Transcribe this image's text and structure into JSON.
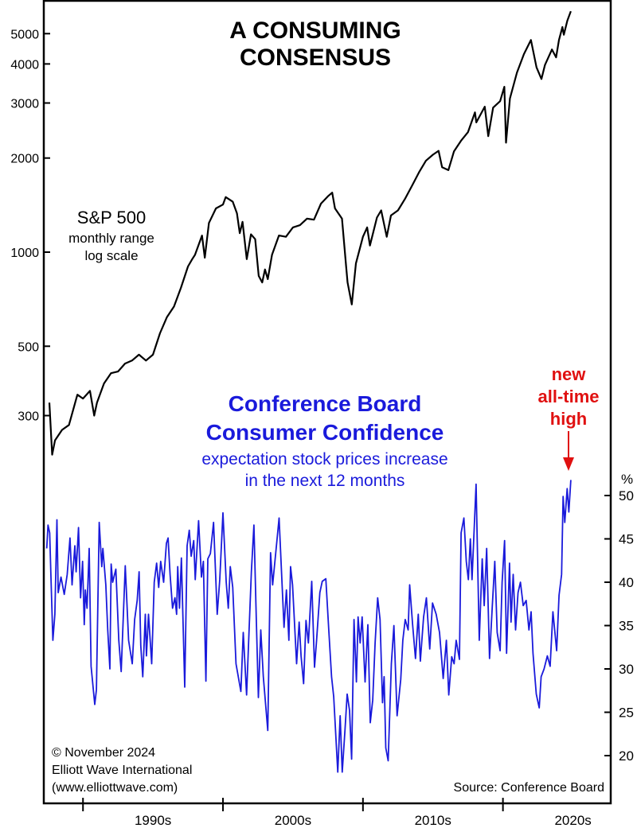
{
  "chart_data": [
    {
      "type": "line",
      "title": "A CONSUMING CONSENSUS",
      "series_label": "S&P 500",
      "series_sublabel": [
        "monthly range",
        "log scale"
      ],
      "y_scale": "log",
      "ylim": [
        200,
        6000
      ],
      "yticks": [
        300,
        500,
        1000,
        2000,
        3000,
        4000,
        5000
      ],
      "ytick_labels": [
        "300",
        "500",
        "1000",
        "2000",
        "3000",
        "4000",
        "5000"
      ],
      "axis_side": "left",
      "color": "#000000",
      "points": [
        [
          1987.6,
          330
        ],
        [
          1987.8,
          225
        ],
        [
          1988.0,
          250
        ],
        [
          1988.5,
          270
        ],
        [
          1989.0,
          280
        ],
        [
          1989.6,
          350
        ],
        [
          1990.0,
          340
        ],
        [
          1990.5,
          360
        ],
        [
          1990.8,
          300
        ],
        [
          1991.0,
          330
        ],
        [
          1991.5,
          380
        ],
        [
          1992.0,
          410
        ],
        [
          1992.5,
          415
        ],
        [
          1993.0,
          440
        ],
        [
          1993.5,
          450
        ],
        [
          1994.0,
          470
        ],
        [
          1994.5,
          450
        ],
        [
          1995.0,
          470
        ],
        [
          1995.5,
          550
        ],
        [
          1996.0,
          620
        ],
        [
          1996.5,
          670
        ],
        [
          1997.0,
          770
        ],
        [
          1997.5,
          900
        ],
        [
          1997.8,
          950
        ],
        [
          1998.0,
          980
        ],
        [
          1998.5,
          1130
        ],
        [
          1998.7,
          960
        ],
        [
          1999.0,
          1240
        ],
        [
          1999.5,
          1380
        ],
        [
          2000.0,
          1420
        ],
        [
          2000.2,
          1500
        ],
        [
          2000.7,
          1450
        ],
        [
          2001.0,
          1330
        ],
        [
          2001.2,
          1150
        ],
        [
          2001.4,
          1250
        ],
        [
          2001.7,
          950
        ],
        [
          2002.0,
          1140
        ],
        [
          2002.3,
          1100
        ],
        [
          2002.55,
          840
        ],
        [
          2002.8,
          800
        ],
        [
          2003.0,
          880
        ],
        [
          2003.2,
          820
        ],
        [
          2003.5,
          980
        ],
        [
          2004.0,
          1130
        ],
        [
          2004.5,
          1120
        ],
        [
          2005.0,
          1200
        ],
        [
          2005.5,
          1220
        ],
        [
          2006.0,
          1280
        ],
        [
          2006.5,
          1270
        ],
        [
          2007.0,
          1430
        ],
        [
          2007.5,
          1510
        ],
        [
          2007.8,
          1550
        ],
        [
          2008.0,
          1380
        ],
        [
          2008.5,
          1280
        ],
        [
          2008.8,
          900
        ],
        [
          2008.9,
          800
        ],
        [
          2009.2,
          680
        ],
        [
          2009.5,
          920
        ],
        [
          2010.0,
          1120
        ],
        [
          2010.3,
          1200
        ],
        [
          2010.5,
          1050
        ],
        [
          2011.0,
          1290
        ],
        [
          2011.3,
          1360
        ],
        [
          2011.7,
          1120
        ],
        [
          2012.0,
          1310
        ],
        [
          2012.5,
          1360
        ],
        [
          2013.0,
          1480
        ],
        [
          2013.5,
          1630
        ],
        [
          2014.0,
          1800
        ],
        [
          2014.5,
          1960
        ],
        [
          2015.0,
          2050
        ],
        [
          2015.4,
          2110
        ],
        [
          2015.65,
          1870
        ],
        [
          2016.1,
          1830
        ],
        [
          2016.5,
          2100
        ],
        [
          2017.0,
          2270
        ],
        [
          2017.5,
          2420
        ],
        [
          2018.0,
          2800
        ],
        [
          2018.1,
          2600
        ],
        [
          2018.7,
          2920
        ],
        [
          2018.95,
          2350
        ],
        [
          2019.3,
          2900
        ],
        [
          2019.8,
          3040
        ],
        [
          2020.1,
          3380
        ],
        [
          2020.22,
          2240
        ],
        [
          2020.5,
          3100
        ],
        [
          2021.0,
          3750
        ],
        [
          2021.5,
          4300
        ],
        [
          2022.0,
          4770
        ],
        [
          2022.4,
          3900
        ],
        [
          2022.75,
          3580
        ],
        [
          2023.0,
          3970
        ],
        [
          2023.5,
          4450
        ],
        [
          2023.8,
          4200
        ],
        [
          2024.0,
          4770
        ],
        [
          2024.25,
          5250
        ],
        [
          2024.35,
          4960
        ],
        [
          2024.6,
          5500
        ],
        [
          2024.85,
          5900
        ]
      ]
    },
    {
      "type": "line",
      "series_label": [
        "Conference Board",
        "Consumer Confidence"
      ],
      "series_sublabel": [
        "expectation stock prices increase",
        "in the next 12 months"
      ],
      "y_unit": "%",
      "ylim": [
        16,
        54
      ],
      "yticks": [
        20,
        25,
        30,
        35,
        40,
        45,
        50
      ],
      "ytick_labels": [
        "20",
        "25",
        "30",
        "35",
        "40",
        "45",
        "50"
      ],
      "axis_side": "right",
      "color": "#1a1adb",
      "annotation": {
        "lines": [
          "new",
          "all-time",
          "high"
        ],
        "color": "#e01010",
        "arrow": "down",
        "at": [
          2024.85,
          51.8
        ]
      },
      "points": [
        [
          1987.41,
          43.9
        ],
        [
          1987.5,
          46.6
        ],
        [
          1987.62,
          45.7
        ],
        [
          1987.7,
          41.2
        ],
        [
          1987.85,
          33.3
        ],
        [
          1987.99,
          36.3
        ],
        [
          1988.14,
          47.2
        ],
        [
          1988.23,
          38.8
        ],
        [
          1988.43,
          40.6
        ],
        [
          1988.66,
          38.6
        ],
        [
          1988.87,
          40.9
        ],
        [
          1989.07,
          45.1
        ],
        [
          1989.22,
          39.7
        ],
        [
          1989.42,
          44.2
        ],
        [
          1989.51,
          41.2
        ],
        [
          1989.68,
          46.3
        ],
        [
          1989.83,
          38.2
        ],
        [
          1989.97,
          42.4
        ],
        [
          1990.09,
          35.1
        ],
        [
          1990.17,
          39.1
        ],
        [
          1990.29,
          37
        ],
        [
          1990.44,
          43.9
        ],
        [
          1990.58,
          30.3
        ],
        [
          1990.84,
          25.9
        ],
        [
          1990.96,
          27.6
        ],
        [
          1991.16,
          46.9
        ],
        [
          1991.34,
          41.8
        ],
        [
          1991.42,
          43.9
        ],
        [
          1991.63,
          39.7
        ],
        [
          1991.77,
          34.5
        ],
        [
          1991.92,
          30
        ],
        [
          1992.01,
          42.1
        ],
        [
          1992.12,
          40
        ],
        [
          1992.35,
          41.5
        ],
        [
          1992.56,
          33.3
        ],
        [
          1992.73,
          29.7
        ],
        [
          1993.02,
          41.9
        ],
        [
          1993.26,
          33.3
        ],
        [
          1993.52,
          30.6
        ],
        [
          1993.69,
          35.7
        ],
        [
          1993.87,
          37.9
        ],
        [
          1994.01,
          41.2
        ],
        [
          1994.13,
          32.7
        ],
        [
          1994.27,
          29.1
        ],
        [
          1994.45,
          36.3
        ],
        [
          1994.53,
          31.5
        ],
        [
          1994.68,
          36.3
        ],
        [
          1994.91,
          30.6
        ],
        [
          1995.09,
          40
        ],
        [
          1995.26,
          42.2
        ],
        [
          1995.41,
          39.4
        ],
        [
          1995.55,
          42.4
        ],
        [
          1995.76,
          40
        ],
        [
          1995.96,
          44.5
        ],
        [
          1996.08,
          45.1
        ],
        [
          1996.22,
          40.9
        ],
        [
          1996.4,
          37
        ],
        [
          1996.57,
          38.2
        ],
        [
          1996.69,
          36.3
        ],
        [
          1996.77,
          41.8
        ],
        [
          1996.89,
          37
        ],
        [
          1997.03,
          42.8
        ],
        [
          1997.27,
          27.9
        ],
        [
          1997.44,
          44.2
        ],
        [
          1997.59,
          46
        ],
        [
          1997.73,
          43
        ],
        [
          1997.91,
          44.8
        ],
        [
          1998.02,
          40.3
        ],
        [
          1998.26,
          47.1
        ],
        [
          1998.46,
          40.6
        ],
        [
          1998.6,
          42.4
        ],
        [
          1998.78,
          28.6
        ],
        [
          1998.92,
          42.7
        ],
        [
          1999.1,
          43.3
        ],
        [
          1999.33,
          46.9
        ],
        [
          1999.59,
          36.3
        ],
        [
          1999.77,
          40.3
        ],
        [
          2000.0,
          48
        ],
        [
          2000.23,
          40
        ],
        [
          2000.38,
          37
        ],
        [
          2000.52,
          41.8
        ],
        [
          2000.7,
          39.4
        ],
        [
          2000.93,
          30.6
        ],
        [
          2001.28,
          27.4
        ],
        [
          2001.45,
          34.2
        ],
        [
          2001.69,
          27
        ],
        [
          2001.86,
          34.2
        ],
        [
          2002.03,
          41.2
        ],
        [
          2002.21,
          46.6
        ],
        [
          2002.38,
          35.7
        ],
        [
          2002.53,
          26.7
        ],
        [
          2002.7,
          34.5
        ],
        [
          2002.88,
          29.1
        ],
        [
          2003.2,
          22.9
        ],
        [
          2003.4,
          43.4
        ],
        [
          2003.55,
          39.7
        ],
        [
          2003.87,
          45.1
        ],
        [
          2004.01,
          47.4
        ],
        [
          2004.19,
          40.9
        ],
        [
          2004.36,
          34.8
        ],
        [
          2004.53,
          39.1
        ],
        [
          2004.71,
          33.3
        ],
        [
          2004.83,
          41.8
        ],
        [
          2004.97,
          39.7
        ],
        [
          2005.26,
          30.6
        ],
        [
          2005.44,
          35.4
        ],
        [
          2005.58,
          31.5
        ],
        [
          2005.76,
          28.3
        ],
        [
          2005.93,
          35.6
        ],
        [
          2006.1,
          33
        ],
        [
          2006.34,
          40.1
        ],
        [
          2006.54,
          30.2
        ],
        [
          2006.69,
          33.3
        ],
        [
          2006.92,
          38.8
        ],
        [
          2007.09,
          40.1
        ],
        [
          2007.35,
          40.4
        ],
        [
          2007.56,
          34.5
        ],
        [
          2007.76,
          29.1
        ],
        [
          2007.91,
          26.8
        ],
        [
          2008.2,
          18.1
        ],
        [
          2008.37,
          24.6
        ],
        [
          2008.52,
          18.1
        ],
        [
          2008.72,
          23
        ],
        [
          2008.87,
          27.1
        ],
        [
          2009.04,
          25.2
        ],
        [
          2009.19,
          19.6
        ],
        [
          2009.36,
          35.7
        ],
        [
          2009.53,
          28.5
        ],
        [
          2009.65,
          36
        ],
        [
          2009.8,
          33
        ],
        [
          2009.94,
          36
        ],
        [
          2010.15,
          28.5
        ],
        [
          2010.35,
          35.1
        ],
        [
          2010.52,
          23.8
        ],
        [
          2010.7,
          26.4
        ],
        [
          2010.87,
          33
        ],
        [
          2011.05,
          38.2
        ],
        [
          2011.22,
          35.7
        ],
        [
          2011.4,
          26.1
        ],
        [
          2011.51,
          29.1
        ],
        [
          2011.63,
          20.9
        ],
        [
          2011.8,
          19.4
        ],
        [
          2012.03,
          30.6
        ],
        [
          2012.21,
          35
        ],
        [
          2012.44,
          24.6
        ],
        [
          2012.7,
          28.8
        ],
        [
          2012.85,
          33.3
        ],
        [
          2013.02,
          35.7
        ],
        [
          2013.23,
          34.5
        ],
        [
          2013.34,
          39.7
        ],
        [
          2013.55,
          35.1
        ],
        [
          2013.75,
          31.2
        ],
        [
          2013.95,
          36.3
        ],
        [
          2014.1,
          30.9
        ],
        [
          2014.33,
          36
        ],
        [
          2014.53,
          38.2
        ],
        [
          2014.77,
          32.3
        ],
        [
          2014.97,
          37.6
        ],
        [
          2015.23,
          36.3
        ],
        [
          2015.47,
          34.2
        ],
        [
          2015.73,
          28.9
        ],
        [
          2015.96,
          33.3
        ],
        [
          2016.13,
          27
        ],
        [
          2016.34,
          31.4
        ],
        [
          2016.51,
          30.6
        ],
        [
          2016.66,
          33.3
        ],
        [
          2016.89,
          31.1
        ],
        [
          2017.01,
          45.7
        ],
        [
          2017.21,
          47.4
        ],
        [
          2017.38,
          42.4
        ],
        [
          2017.53,
          40.3
        ],
        [
          2017.67,
          45
        ],
        [
          2017.79,
          40.3
        ],
        [
          2018.08,
          51.3
        ],
        [
          2018.31,
          33.3
        ],
        [
          2018.52,
          42.7
        ],
        [
          2018.66,
          37.3
        ],
        [
          2018.84,
          43.9
        ],
        [
          2019.04,
          31.2
        ],
        [
          2019.24,
          37.3
        ],
        [
          2019.42,
          42.4
        ],
        [
          2019.59,
          34.2
        ],
        [
          2019.8,
          32.1
        ],
        [
          2019.94,
          40
        ],
        [
          2020.12,
          44.8
        ],
        [
          2020.26,
          31.8
        ],
        [
          2020.47,
          42.2
        ],
        [
          2020.58,
          35.4
        ],
        [
          2020.73,
          40.9
        ],
        [
          2020.9,
          34.5
        ],
        [
          2021.08,
          38.8
        ],
        [
          2021.25,
          40
        ],
        [
          2021.45,
          37.3
        ],
        [
          2021.66,
          37.9
        ],
        [
          2021.86,
          34.5
        ],
        [
          2022.01,
          36.6
        ],
        [
          2022.15,
          31.8
        ],
        [
          2022.38,
          27.1
        ],
        [
          2022.59,
          25.5
        ],
        [
          2022.73,
          29.1
        ],
        [
          2022.94,
          30
        ],
        [
          2023.17,
          31.5
        ],
        [
          2023.37,
          30.3
        ],
        [
          2023.57,
          36.6
        ],
        [
          2023.84,
          32.1
        ],
        [
          2024.01,
          38.5
        ],
        [
          2024.19,
          40.9
        ],
        [
          2024.3,
          49.9
        ],
        [
          2024.42,
          46.9
        ],
        [
          2024.59,
          50.8
        ],
        [
          2024.71,
          48.1
        ],
        [
          2024.85,
          51.8
        ]
      ]
    }
  ],
  "x_axis": {
    "xlim": [
      1987.2,
      2027.7
    ],
    "ticks": [
      1990,
      2000,
      2010,
      2020
    ],
    "labels": [
      "1990s",
      "2000s",
      "2010s",
      "2020s"
    ]
  },
  "footer": {
    "copyright": [
      "© November 2024",
      "Elliott Wave International",
      "(www.elliottwave.com)"
    ],
    "source": "Source: Conference Board"
  }
}
